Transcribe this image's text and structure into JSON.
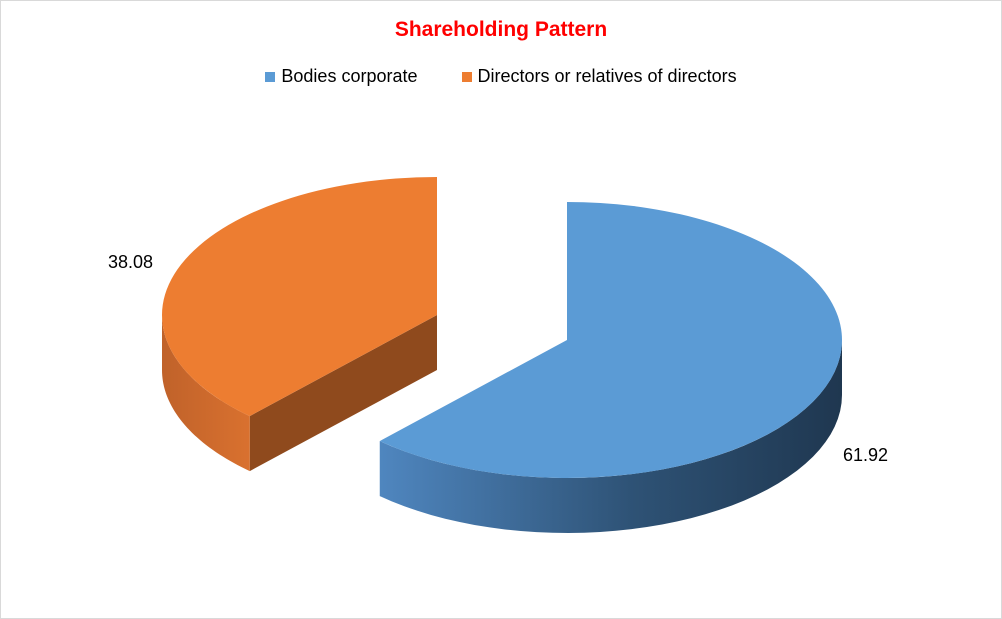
{
  "chart_data": {
    "type": "pie",
    "style": "3d-exploded",
    "title": "Shareholding Pattern",
    "legend_position": "top",
    "slices": [
      {
        "name": "Bodies corporate",
        "value": 61.92,
        "label": "61.92",
        "color": "#5b9bd5"
      },
      {
        "name": "Directors or relatives of directors",
        "value": 38.08,
        "label": "38.08",
        "color": "#ed7d31"
      }
    ]
  }
}
